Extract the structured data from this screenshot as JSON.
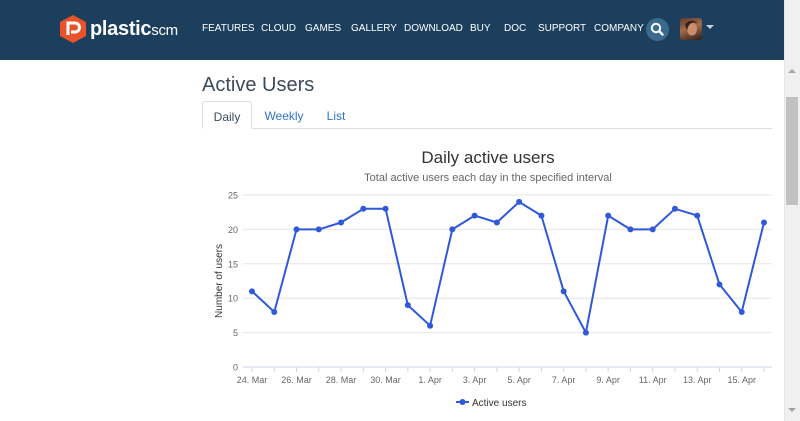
{
  "brand": {
    "name_main": "plastic",
    "name_suffix": "scm",
    "color": "#e8532a"
  },
  "nav": {
    "items": [
      "FEATURES",
      "CLOUD",
      "GAMES",
      "GALLERY",
      "DOWNLOAD",
      "BUY",
      "DOC",
      "SUPPORT",
      "COMPANY"
    ],
    "background": "#1c3f5e",
    "search_icon": "search-icon",
    "avatar_icon": "user-avatar"
  },
  "page": {
    "title": "Active Users",
    "tabs": [
      {
        "label": "Daily",
        "active": true
      },
      {
        "label": "Weekly",
        "active": false
      },
      {
        "label": "List",
        "active": false
      }
    ]
  },
  "chart_data": {
    "type": "line",
    "title": "Daily active users",
    "subtitle": "Total active users each day in the specified interval",
    "ylabel": "Number of users",
    "xlabel": "",
    "ylim": [
      0,
      25
    ],
    "yticks": [
      0,
      5,
      10,
      15,
      20,
      25
    ],
    "x_tick_labels": [
      "24. Mar",
      "26. Mar",
      "28. Mar",
      "30. Mar",
      "1. Apr",
      "3. Apr",
      "5. Apr",
      "7. Apr",
      "9. Apr",
      "11. Apr",
      "13. Apr",
      "15. Apr"
    ],
    "x": [
      "24. Mar",
      "25. Mar",
      "26. Mar",
      "27. Mar",
      "28. Mar",
      "29. Mar",
      "30. Mar",
      "31. Mar",
      "1. Apr",
      "2. Apr",
      "3. Apr",
      "4. Apr",
      "5. Apr",
      "6. Apr",
      "7. Apr",
      "8. Apr",
      "9. Apr",
      "10. Apr",
      "11. Apr",
      "12. Apr",
      "13. Apr",
      "14. Apr",
      "15. Apr",
      "16. Apr"
    ],
    "series": [
      {
        "name": "Active users",
        "color": "#2f59d9",
        "values": [
          11,
          8,
          20,
          20,
          21,
          23,
          23,
          9,
          6,
          20,
          22,
          21,
          24,
          22,
          11,
          5,
          22,
          20,
          20,
          23,
          22,
          12,
          8,
          21
        ]
      }
    ],
    "grid": true,
    "legend": "bottom"
  }
}
